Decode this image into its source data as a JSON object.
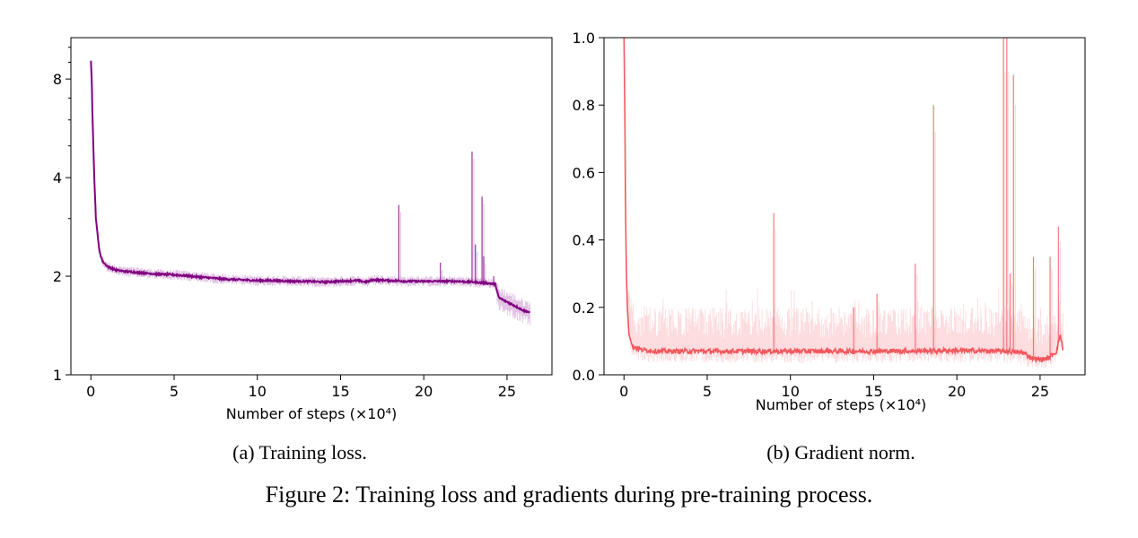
{
  "figure_caption": "Figure 2: Training loss and gradients during pre-training process.",
  "chart_data": [
    {
      "type": "line",
      "caption": "(a) Training loss.",
      "xlabel": "Number of steps (×10⁴)",
      "ylabel": "",
      "xlim": [
        -1.2,
        27.7
      ],
      "ylim": [
        1,
        10.7
      ],
      "yscale": "log",
      "xticks": [
        0,
        5,
        10,
        15,
        20,
        25
      ],
      "yticks": [
        1,
        2,
        4,
        8
      ],
      "grid": false,
      "colors": {
        "smoothed": "#800080",
        "raw": "#cf9bd3"
      },
      "series": [
        {
          "role": "smoothed",
          "x": [
            0,
            0.05,
            0.1,
            0.2,
            0.3,
            0.5,
            0.7,
            1,
            1.5,
            2,
            3,
            4,
            5,
            6,
            7,
            8,
            9,
            10,
            11,
            12,
            13,
            14,
            15,
            16,
            16.5,
            17,
            18,
            19,
            20,
            21,
            22,
            23,
            23.5,
            24,
            24.3,
            24.5,
            25,
            25.5,
            26,
            26.4
          ],
          "y": [
            9.1,
            8.0,
            6.0,
            4.0,
            3.0,
            2.4,
            2.22,
            2.14,
            2.09,
            2.07,
            2.05,
            2.03,
            2.02,
            2.0,
            1.98,
            1.96,
            1.95,
            1.94,
            1.94,
            1.93,
            1.93,
            1.92,
            1.93,
            1.94,
            1.92,
            1.95,
            1.94,
            1.93,
            1.93,
            1.93,
            1.93,
            1.92,
            1.91,
            1.9,
            1.89,
            1.72,
            1.67,
            1.62,
            1.57,
            1.55
          ]
        },
        {
          "role": "spikes",
          "x": [
            18.5,
            22.9,
            23.1,
            23.5,
            23.6,
            21.0,
            24.2
          ],
          "y": [
            3.3,
            4.8,
            2.5,
            3.5,
            2.3,
            2.2,
            2.0
          ]
        }
      ]
    },
    {
      "type": "line",
      "caption": "(b) Gradient norm.",
      "xlabel": "Number of steps (×10⁴)",
      "ylabel": "",
      "xlim": [
        -1.2,
        27.7
      ],
      "ylim": [
        0,
        1.0
      ],
      "xticks": [
        0,
        5,
        10,
        15,
        20,
        25
      ],
      "yticks": [
        0.0,
        0.2,
        0.4,
        0.6,
        0.8,
        1.0
      ],
      "grid": false,
      "colors": {
        "smoothed": "#f0595e",
        "raw": "#fbc4cb"
      },
      "series": [
        {
          "role": "smoothed",
          "x": [
            0,
            0.05,
            0.1,
            0.15,
            0.2,
            0.3,
            0.5,
            1,
            2,
            5,
            10,
            15,
            20,
            23,
            24,
            24.5,
            25,
            25.5,
            26,
            26.2,
            26.4
          ],
          "y": [
            1.0,
            0.8,
            0.45,
            0.3,
            0.2,
            0.12,
            0.085,
            0.075,
            0.07,
            0.07,
            0.07,
            0.07,
            0.072,
            0.07,
            0.065,
            0.05,
            0.045,
            0.05,
            0.07,
            0.12,
            0.07
          ]
        },
        {
          "role": "spikes",
          "x": [
            9.0,
            17.5,
            18.6,
            22.8,
            23.0,
            23.2,
            23.4,
            24.6,
            25.6,
            26.1,
            15.2,
            13.8
          ],
          "y": [
            0.48,
            0.33,
            0.8,
            1.0,
            1.0,
            0.3,
            0.89,
            0.35,
            0.35,
            0.44,
            0.24,
            0.2
          ]
        }
      ]
    }
  ]
}
